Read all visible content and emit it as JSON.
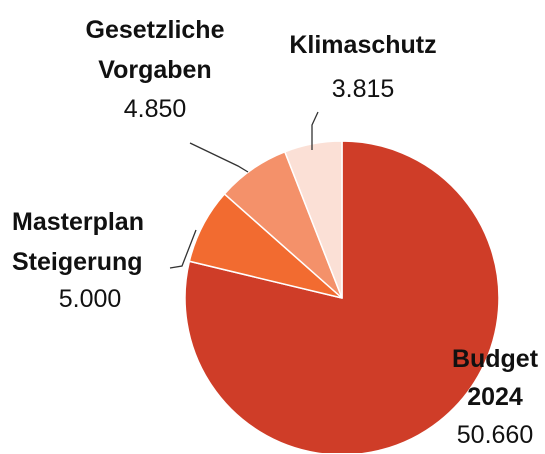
{
  "chart_data": {
    "type": "pie",
    "categories": [
      "Budget 2024",
      "Masterplan Steigerung",
      "Gesetzliche Vorgaben",
      "Klimaschutz"
    ],
    "values": [
      50660,
      5000,
      4850,
      3815
    ],
    "value_labels": [
      "50.660",
      "5.000",
      "4.850",
      "3.815"
    ],
    "colors": [
      "#cf3d28",
      "#f26b30",
      "#f4916a",
      "#fbe0d6"
    ]
  }
}
